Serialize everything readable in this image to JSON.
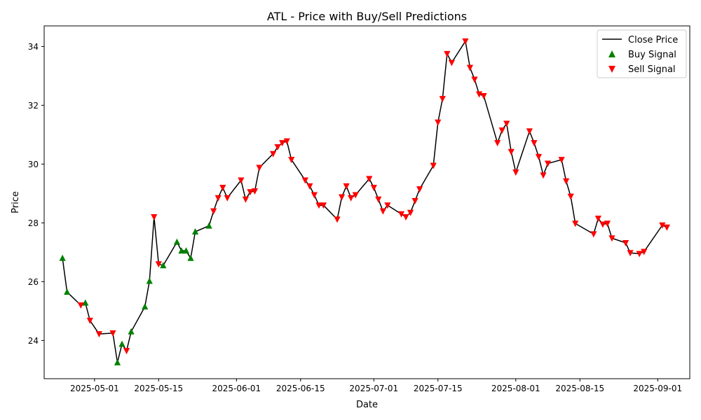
{
  "chart_data": {
    "type": "line",
    "title": "ATL - Price with Buy/Sell Predictions",
    "xlabel": "Date",
    "ylabel": "Price",
    "x_ticks": [
      "2025-05-01",
      "2025-05-15",
      "2025-06-01",
      "2025-06-15",
      "2025-07-01",
      "2025-07-15",
      "2025-08-01",
      "2025-08-15",
      "2025-09-01"
    ],
    "y_ticks": [
      24,
      26,
      28,
      30,
      32,
      34
    ],
    "xlim": [
      "2025-04-20",
      "2025-09-08"
    ],
    "ylim": [
      22.7,
      34.7
    ],
    "grid": false,
    "legend_position": "top-right",
    "colors": {
      "line": "#000000",
      "buy": "#008000",
      "sell": "#ff0000"
    },
    "legend": [
      {
        "label": "Close Price",
        "kind": "line"
      },
      {
        "label": "Buy Signal",
        "kind": "buy"
      },
      {
        "label": "Sell Signal",
        "kind": "sell"
      }
    ],
    "series": [
      {
        "name": "Close Price",
        "points": [
          [
            "2025-04-24",
            26.8
          ],
          [
            "2025-04-25",
            25.65
          ],
          [
            "2025-04-28",
            25.2
          ],
          [
            "2025-04-29",
            25.28
          ],
          [
            "2025-04-30",
            24.68
          ],
          [
            "2025-05-02",
            24.22
          ],
          [
            "2025-05-05",
            24.25
          ],
          [
            "2025-05-06",
            23.25
          ],
          [
            "2025-05-07",
            23.88
          ],
          [
            "2025-05-08",
            23.65
          ],
          [
            "2025-05-09",
            24.3
          ],
          [
            "2025-05-12",
            25.15
          ],
          [
            "2025-05-13",
            26.02
          ],
          [
            "2025-05-14",
            28.2
          ],
          [
            "2025-05-15",
            26.6
          ],
          [
            "2025-05-16",
            26.55
          ],
          [
            "2025-05-19",
            27.35
          ],
          [
            "2025-05-20",
            27.05
          ],
          [
            "2025-05-21",
            27.05
          ],
          [
            "2025-05-22",
            26.8
          ],
          [
            "2025-05-23",
            27.7
          ],
          [
            "2025-05-26",
            27.9
          ],
          [
            "2025-05-27",
            28.4
          ],
          [
            "2025-05-28",
            28.85
          ],
          [
            "2025-05-29",
            29.2
          ],
          [
            "2025-05-30",
            28.85
          ],
          [
            "2025-06-02",
            29.45
          ],
          [
            "2025-06-03",
            28.8
          ],
          [
            "2025-06-04",
            29.05
          ],
          [
            "2025-06-05",
            29.08
          ],
          [
            "2025-06-06",
            29.88
          ],
          [
            "2025-06-09",
            30.35
          ],
          [
            "2025-06-10",
            30.58
          ],
          [
            "2025-06-11",
            30.72
          ],
          [
            "2025-06-12",
            30.78
          ],
          [
            "2025-06-13",
            30.15
          ],
          [
            "2025-06-16",
            29.45
          ],
          [
            "2025-06-17",
            29.25
          ],
          [
            "2025-06-18",
            28.95
          ],
          [
            "2025-06-19",
            28.6
          ],
          [
            "2025-06-20",
            28.6
          ],
          [
            "2025-06-23",
            28.12
          ],
          [
            "2025-06-24",
            28.88
          ],
          [
            "2025-06-25",
            29.25
          ],
          [
            "2025-06-26",
            28.85
          ],
          [
            "2025-06-27",
            28.95
          ],
          [
            "2025-06-30",
            29.5
          ],
          [
            "2025-07-01",
            29.2
          ],
          [
            "2025-07-02",
            28.8
          ],
          [
            "2025-07-03",
            28.4
          ],
          [
            "2025-07-04",
            28.6
          ],
          [
            "2025-07-07",
            28.3
          ],
          [
            "2025-07-08",
            28.2
          ],
          [
            "2025-07-09",
            28.35
          ],
          [
            "2025-07-10",
            28.75
          ],
          [
            "2025-07-11",
            29.15
          ],
          [
            "2025-07-14",
            29.95
          ],
          [
            "2025-07-15",
            31.42
          ],
          [
            "2025-07-16",
            32.22
          ],
          [
            "2025-07-17",
            33.75
          ],
          [
            "2025-07-18",
            33.45
          ],
          [
            "2025-07-21",
            34.18
          ],
          [
            "2025-07-22",
            33.28
          ],
          [
            "2025-07-23",
            32.88
          ],
          [
            "2025-07-24",
            32.38
          ],
          [
            "2025-07-25",
            32.32
          ],
          [
            "2025-07-28",
            30.72
          ],
          [
            "2025-07-29",
            31.15
          ],
          [
            "2025-07-30",
            31.38
          ],
          [
            "2025-07-31",
            30.42
          ],
          [
            "2025-08-01",
            29.72
          ],
          [
            "2025-08-04",
            31.12
          ],
          [
            "2025-08-05",
            30.72
          ],
          [
            "2025-08-06",
            30.25
          ],
          [
            "2025-08-07",
            29.62
          ],
          [
            "2025-08-08",
            30.02
          ],
          [
            "2025-08-11",
            30.15
          ],
          [
            "2025-08-12",
            29.42
          ],
          [
            "2025-08-13",
            28.9
          ],
          [
            "2025-08-14",
            27.98
          ],
          [
            "2025-08-18",
            27.62
          ],
          [
            "2025-08-19",
            28.15
          ],
          [
            "2025-08-20",
            27.95
          ],
          [
            "2025-08-21",
            27.98
          ],
          [
            "2025-08-22",
            27.48
          ],
          [
            "2025-08-25",
            27.32
          ],
          [
            "2025-08-26",
            26.98
          ],
          [
            "2025-08-28",
            26.95
          ],
          [
            "2025-08-29",
            27.02
          ],
          [
            "2025-09-02",
            27.92
          ],
          [
            "2025-09-03",
            27.85
          ]
        ]
      },
      {
        "name": "Buy Signal",
        "points": [
          [
            "2025-04-24",
            26.8
          ],
          [
            "2025-04-25",
            25.65
          ],
          [
            "2025-04-29",
            25.28
          ],
          [
            "2025-05-06",
            23.25
          ],
          [
            "2025-05-07",
            23.88
          ],
          [
            "2025-05-09",
            24.3
          ],
          [
            "2025-05-12",
            25.15
          ],
          [
            "2025-05-13",
            26.02
          ],
          [
            "2025-05-16",
            26.55
          ],
          [
            "2025-05-19",
            27.35
          ],
          [
            "2025-05-20",
            27.05
          ],
          [
            "2025-05-21",
            27.05
          ],
          [
            "2025-05-22",
            26.8
          ],
          [
            "2025-05-23",
            27.7
          ],
          [
            "2025-05-26",
            27.9
          ]
        ]
      },
      {
        "name": "Sell Signal",
        "points": [
          [
            "2025-04-28",
            25.2
          ],
          [
            "2025-04-30",
            24.68
          ],
          [
            "2025-05-02",
            24.22
          ],
          [
            "2025-05-05",
            24.25
          ],
          [
            "2025-05-08",
            23.65
          ],
          [
            "2025-05-14",
            28.2
          ],
          [
            "2025-05-15",
            26.6
          ],
          [
            "2025-05-27",
            28.4
          ],
          [
            "2025-05-28",
            28.85
          ],
          [
            "2025-05-29",
            29.2
          ],
          [
            "2025-05-30",
            28.85
          ],
          [
            "2025-06-02",
            29.45
          ],
          [
            "2025-06-03",
            28.8
          ],
          [
            "2025-06-04",
            29.05
          ],
          [
            "2025-06-05",
            29.08
          ],
          [
            "2025-06-06",
            29.88
          ],
          [
            "2025-06-09",
            30.35
          ],
          [
            "2025-06-10",
            30.58
          ],
          [
            "2025-06-11",
            30.72
          ],
          [
            "2025-06-12",
            30.78
          ],
          [
            "2025-06-13",
            30.15
          ],
          [
            "2025-06-16",
            29.45
          ],
          [
            "2025-06-17",
            29.25
          ],
          [
            "2025-06-18",
            28.95
          ],
          [
            "2025-06-19",
            28.6
          ],
          [
            "2025-06-20",
            28.6
          ],
          [
            "2025-06-23",
            28.12
          ],
          [
            "2025-06-24",
            28.88
          ],
          [
            "2025-06-25",
            29.25
          ],
          [
            "2025-06-26",
            28.85
          ],
          [
            "2025-06-27",
            28.95
          ],
          [
            "2025-06-30",
            29.5
          ],
          [
            "2025-07-01",
            29.2
          ],
          [
            "2025-07-02",
            28.8
          ],
          [
            "2025-07-03",
            28.4
          ],
          [
            "2025-07-04",
            28.6
          ],
          [
            "2025-07-07",
            28.3
          ],
          [
            "2025-07-08",
            28.2
          ],
          [
            "2025-07-09",
            28.35
          ],
          [
            "2025-07-10",
            28.75
          ],
          [
            "2025-07-11",
            29.15
          ],
          [
            "2025-07-14",
            29.95
          ],
          [
            "2025-07-15",
            31.42
          ],
          [
            "2025-07-16",
            32.22
          ],
          [
            "2025-07-17",
            33.75
          ],
          [
            "2025-07-18",
            33.45
          ],
          [
            "2025-07-21",
            34.18
          ],
          [
            "2025-07-22",
            33.28
          ],
          [
            "2025-07-23",
            32.88
          ],
          [
            "2025-07-24",
            32.38
          ],
          [
            "2025-07-25",
            32.32
          ],
          [
            "2025-07-28",
            30.72
          ],
          [
            "2025-07-29",
            31.15
          ],
          [
            "2025-07-30",
            31.38
          ],
          [
            "2025-07-31",
            30.42
          ],
          [
            "2025-08-01",
            29.72
          ],
          [
            "2025-08-04",
            31.12
          ],
          [
            "2025-08-05",
            30.72
          ],
          [
            "2025-08-06",
            30.25
          ],
          [
            "2025-08-07",
            29.62
          ],
          [
            "2025-08-08",
            30.02
          ],
          [
            "2025-08-11",
            30.15
          ],
          [
            "2025-08-12",
            29.42
          ],
          [
            "2025-08-13",
            28.9
          ],
          [
            "2025-08-14",
            27.98
          ],
          [
            "2025-08-18",
            27.62
          ],
          [
            "2025-08-19",
            28.15
          ],
          [
            "2025-08-20",
            27.95
          ],
          [
            "2025-08-21",
            27.98
          ],
          [
            "2025-08-22",
            27.48
          ],
          [
            "2025-08-25",
            27.32
          ],
          [
            "2025-08-26",
            26.98
          ],
          [
            "2025-08-28",
            26.95
          ],
          [
            "2025-08-29",
            27.02
          ],
          [
            "2025-09-02",
            27.92
          ],
          [
            "2025-09-03",
            27.85
          ]
        ]
      }
    ]
  }
}
